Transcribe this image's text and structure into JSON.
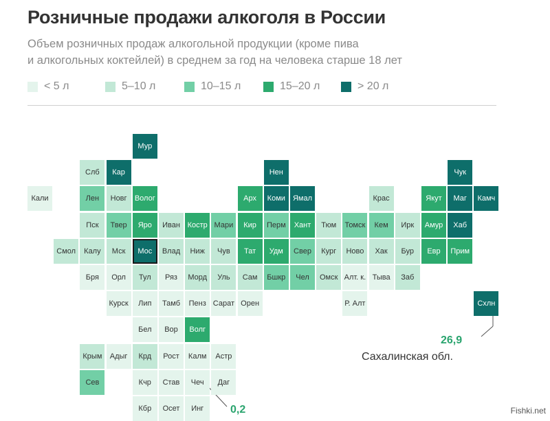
{
  "title": "Розничные продажи алкоголя в России",
  "subtitle_line1": "Объем розничных продаж алкогольной продукции (кроме пива",
  "subtitle_line2": "и алкогольных коктейлей) в среднем за год на человека старше 18 лет",
  "legend": [
    {
      "label": "< 5 л",
      "color": "#e4f4ec"
    },
    {
      "label": "5–10 л",
      "color": "#c2e8d6"
    },
    {
      "label": "10–15 л",
      "color": "#72cfa6"
    },
    {
      "label": "15–20 л",
      "color": "#2daa6e"
    },
    {
      "label": "> 20 л",
      "color": "#0e6e6a"
    }
  ],
  "regions": [
    {
      "name": "Мур",
      "row": 0,
      "col": 4,
      "cls": 4
    },
    {
      "name": "Слб",
      "row": 1,
      "col": 2,
      "cls": 1
    },
    {
      "name": "Кар",
      "row": 1,
      "col": 3,
      "cls": 4
    },
    {
      "name": "Нен",
      "row": 1,
      "col": 9,
      "cls": 4
    },
    {
      "name": "Чук",
      "row": 1,
      "col": 16,
      "cls": 4
    },
    {
      "name": "Кали",
      "row": 2,
      "col": 0,
      "cls": 0
    },
    {
      "name": "Лен",
      "row": 2,
      "col": 2,
      "cls": 2
    },
    {
      "name": "Новг",
      "row": 2,
      "col": 3,
      "cls": 1
    },
    {
      "name": "Волог",
      "row": 2,
      "col": 4,
      "cls": 3
    },
    {
      "name": "Арх",
      "row": 2,
      "col": 8,
      "cls": 3
    },
    {
      "name": "Коми",
      "row": 2,
      "col": 9,
      "cls": 4
    },
    {
      "name": "Ямал",
      "row": 2,
      "col": 10,
      "cls": 4
    },
    {
      "name": "Крас",
      "row": 2,
      "col": 13,
      "cls": 1
    },
    {
      "name": "Якут",
      "row": 2,
      "col": 15,
      "cls": 3
    },
    {
      "name": "Маг",
      "row": 2,
      "col": 16,
      "cls": 4
    },
    {
      "name": "Камч",
      "row": 2,
      "col": 17,
      "cls": 4
    },
    {
      "name": "Пск",
      "row": 3,
      "col": 2,
      "cls": 1
    },
    {
      "name": "Твер",
      "row": 3,
      "col": 3,
      "cls": 2
    },
    {
      "name": "Яро",
      "row": 3,
      "col": 4,
      "cls": 3
    },
    {
      "name": "Иван",
      "row": 3,
      "col": 5,
      "cls": 1
    },
    {
      "name": "Костр",
      "row": 3,
      "col": 6,
      "cls": 3
    },
    {
      "name": "Мари",
      "row": 3,
      "col": 7,
      "cls": 2
    },
    {
      "name": "Кир",
      "row": 3,
      "col": 8,
      "cls": 3
    },
    {
      "name": "Перм",
      "row": 3,
      "col": 9,
      "cls": 2
    },
    {
      "name": "Хант",
      "row": 3,
      "col": 10,
      "cls": 3
    },
    {
      "name": "Тюм",
      "row": 3,
      "col": 11,
      "cls": 1
    },
    {
      "name": "Томск",
      "row": 3,
      "col": 12,
      "cls": 2
    },
    {
      "name": "Кем",
      "row": 3,
      "col": 13,
      "cls": 2
    },
    {
      "name": "Ирк",
      "row": 3,
      "col": 14,
      "cls": 1
    },
    {
      "name": "Амур",
      "row": 3,
      "col": 15,
      "cls": 3
    },
    {
      "name": "Хаб",
      "row": 3,
      "col": 16,
      "cls": 4
    },
    {
      "name": "Смол",
      "row": 4,
      "col": 1,
      "cls": 1
    },
    {
      "name": "Калу",
      "row": 4,
      "col": 2,
      "cls": 1
    },
    {
      "name": "Мск",
      "row": 4,
      "col": 3,
      "cls": 1
    },
    {
      "name": "Мос",
      "row": 4,
      "col": 4,
      "cls": 4
    },
    {
      "name": "Влад",
      "row": 4,
      "col": 5,
      "cls": 1
    },
    {
      "name": "Ниж",
      "row": 4,
      "col": 6,
      "cls": 1
    },
    {
      "name": "Чув",
      "row": 4,
      "col": 7,
      "cls": 1
    },
    {
      "name": "Тат",
      "row": 4,
      "col": 8,
      "cls": 3
    },
    {
      "name": "Удм",
      "row": 4,
      "col": 9,
      "cls": 3
    },
    {
      "name": "Свер",
      "row": 4,
      "col": 10,
      "cls": 2
    },
    {
      "name": "Кург",
      "row": 4,
      "col": 11,
      "cls": 1
    },
    {
      "name": "Ново",
      "row": 4,
      "col": 12,
      "cls": 1
    },
    {
      "name": "Хак",
      "row": 4,
      "col": 13,
      "cls": 1
    },
    {
      "name": "Бур",
      "row": 4,
      "col": 14,
      "cls": 1
    },
    {
      "name": "Евр",
      "row": 4,
      "col": 15,
      "cls": 3
    },
    {
      "name": "Прим",
      "row": 4,
      "col": 16,
      "cls": 3
    },
    {
      "name": "Бря",
      "row": 5,
      "col": 2,
      "cls": 0
    },
    {
      "name": "Орл",
      "row": 5,
      "col": 3,
      "cls": 0
    },
    {
      "name": "Тул",
      "row": 5,
      "col": 4,
      "cls": 1
    },
    {
      "name": "Ряз",
      "row": 5,
      "col": 5,
      "cls": 0
    },
    {
      "name": "Морд",
      "row": 5,
      "col": 6,
      "cls": 1
    },
    {
      "name": "Уль",
      "row": 5,
      "col": 7,
      "cls": 1
    },
    {
      "name": "Сам",
      "row": 5,
      "col": 8,
      "cls": 1
    },
    {
      "name": "Бшкр",
      "row": 5,
      "col": 9,
      "cls": 2
    },
    {
      "name": "Чел",
      "row": 5,
      "col": 10,
      "cls": 2
    },
    {
      "name": "Омск",
      "row": 5,
      "col": 11,
      "cls": 1
    },
    {
      "name": "Алт. к.",
      "row": 5,
      "col": 12,
      "cls": 0
    },
    {
      "name": "Тыва",
      "row": 5,
      "col": 13,
      "cls": 0
    },
    {
      "name": "Заб",
      "row": 5,
      "col": 14,
      "cls": 1
    },
    {
      "name": "Курск",
      "row": 6,
      "col": 3,
      "cls": 0
    },
    {
      "name": "Лип",
      "row": 6,
      "col": 4,
      "cls": 0
    },
    {
      "name": "Тамб",
      "row": 6,
      "col": 5,
      "cls": 0
    },
    {
      "name": "Пенз",
      "row": 6,
      "col": 6,
      "cls": 0
    },
    {
      "name": "Сарат",
      "row": 6,
      "col": 7,
      "cls": 0
    },
    {
      "name": "Орен",
      "row": 6,
      "col": 8,
      "cls": 0
    },
    {
      "name": "Р. Алт",
      "row": 6,
      "col": 12,
      "cls": 0
    },
    {
      "name": "Схлн",
      "row": 6,
      "col": 17,
      "cls": 4
    },
    {
      "name": "Бел",
      "row": 7,
      "col": 4,
      "cls": 0
    },
    {
      "name": "Вор",
      "row": 7,
      "col": 5,
      "cls": 0
    },
    {
      "name": "Волг",
      "row": 7,
      "col": 6,
      "cls": 3
    },
    {
      "name": "Крым",
      "row": 8,
      "col": 2,
      "cls": 1
    },
    {
      "name": "Адыг",
      "row": 8,
      "col": 3,
      "cls": 0
    },
    {
      "name": "Крд",
      "row": 8,
      "col": 4,
      "cls": 1
    },
    {
      "name": "Рост",
      "row": 8,
      "col": 5,
      "cls": 0
    },
    {
      "name": "Калм",
      "row": 8,
      "col": 6,
      "cls": 0
    },
    {
      "name": "Астр",
      "row": 8,
      "col": 7,
      "cls": 0
    },
    {
      "name": "Сев",
      "row": 9,
      "col": 2,
      "cls": 2
    },
    {
      "name": "Кчр",
      "row": 9,
      "col": 4,
      "cls": 0
    },
    {
      "name": "Став",
      "row": 9,
      "col": 5,
      "cls": 0
    },
    {
      "name": "Чеч",
      "row": 9,
      "col": 6,
      "cls": 0
    },
    {
      "name": "Даг",
      "row": 9,
      "col": 7,
      "cls": 0
    },
    {
      "name": "Кбр",
      "row": 10,
      "col": 4,
      "cls": 0
    },
    {
      "name": "Осет",
      "row": 10,
      "col": 5,
      "cls": 0
    },
    {
      "name": "Инг",
      "row": 10,
      "col": 6,
      "cls": 0
    }
  ],
  "annotation_max": {
    "value": "26,9",
    "label": "Сахалинская обл."
  },
  "annotation_min": {
    "value": "0,2"
  },
  "watermark": "Fishki.net"
}
